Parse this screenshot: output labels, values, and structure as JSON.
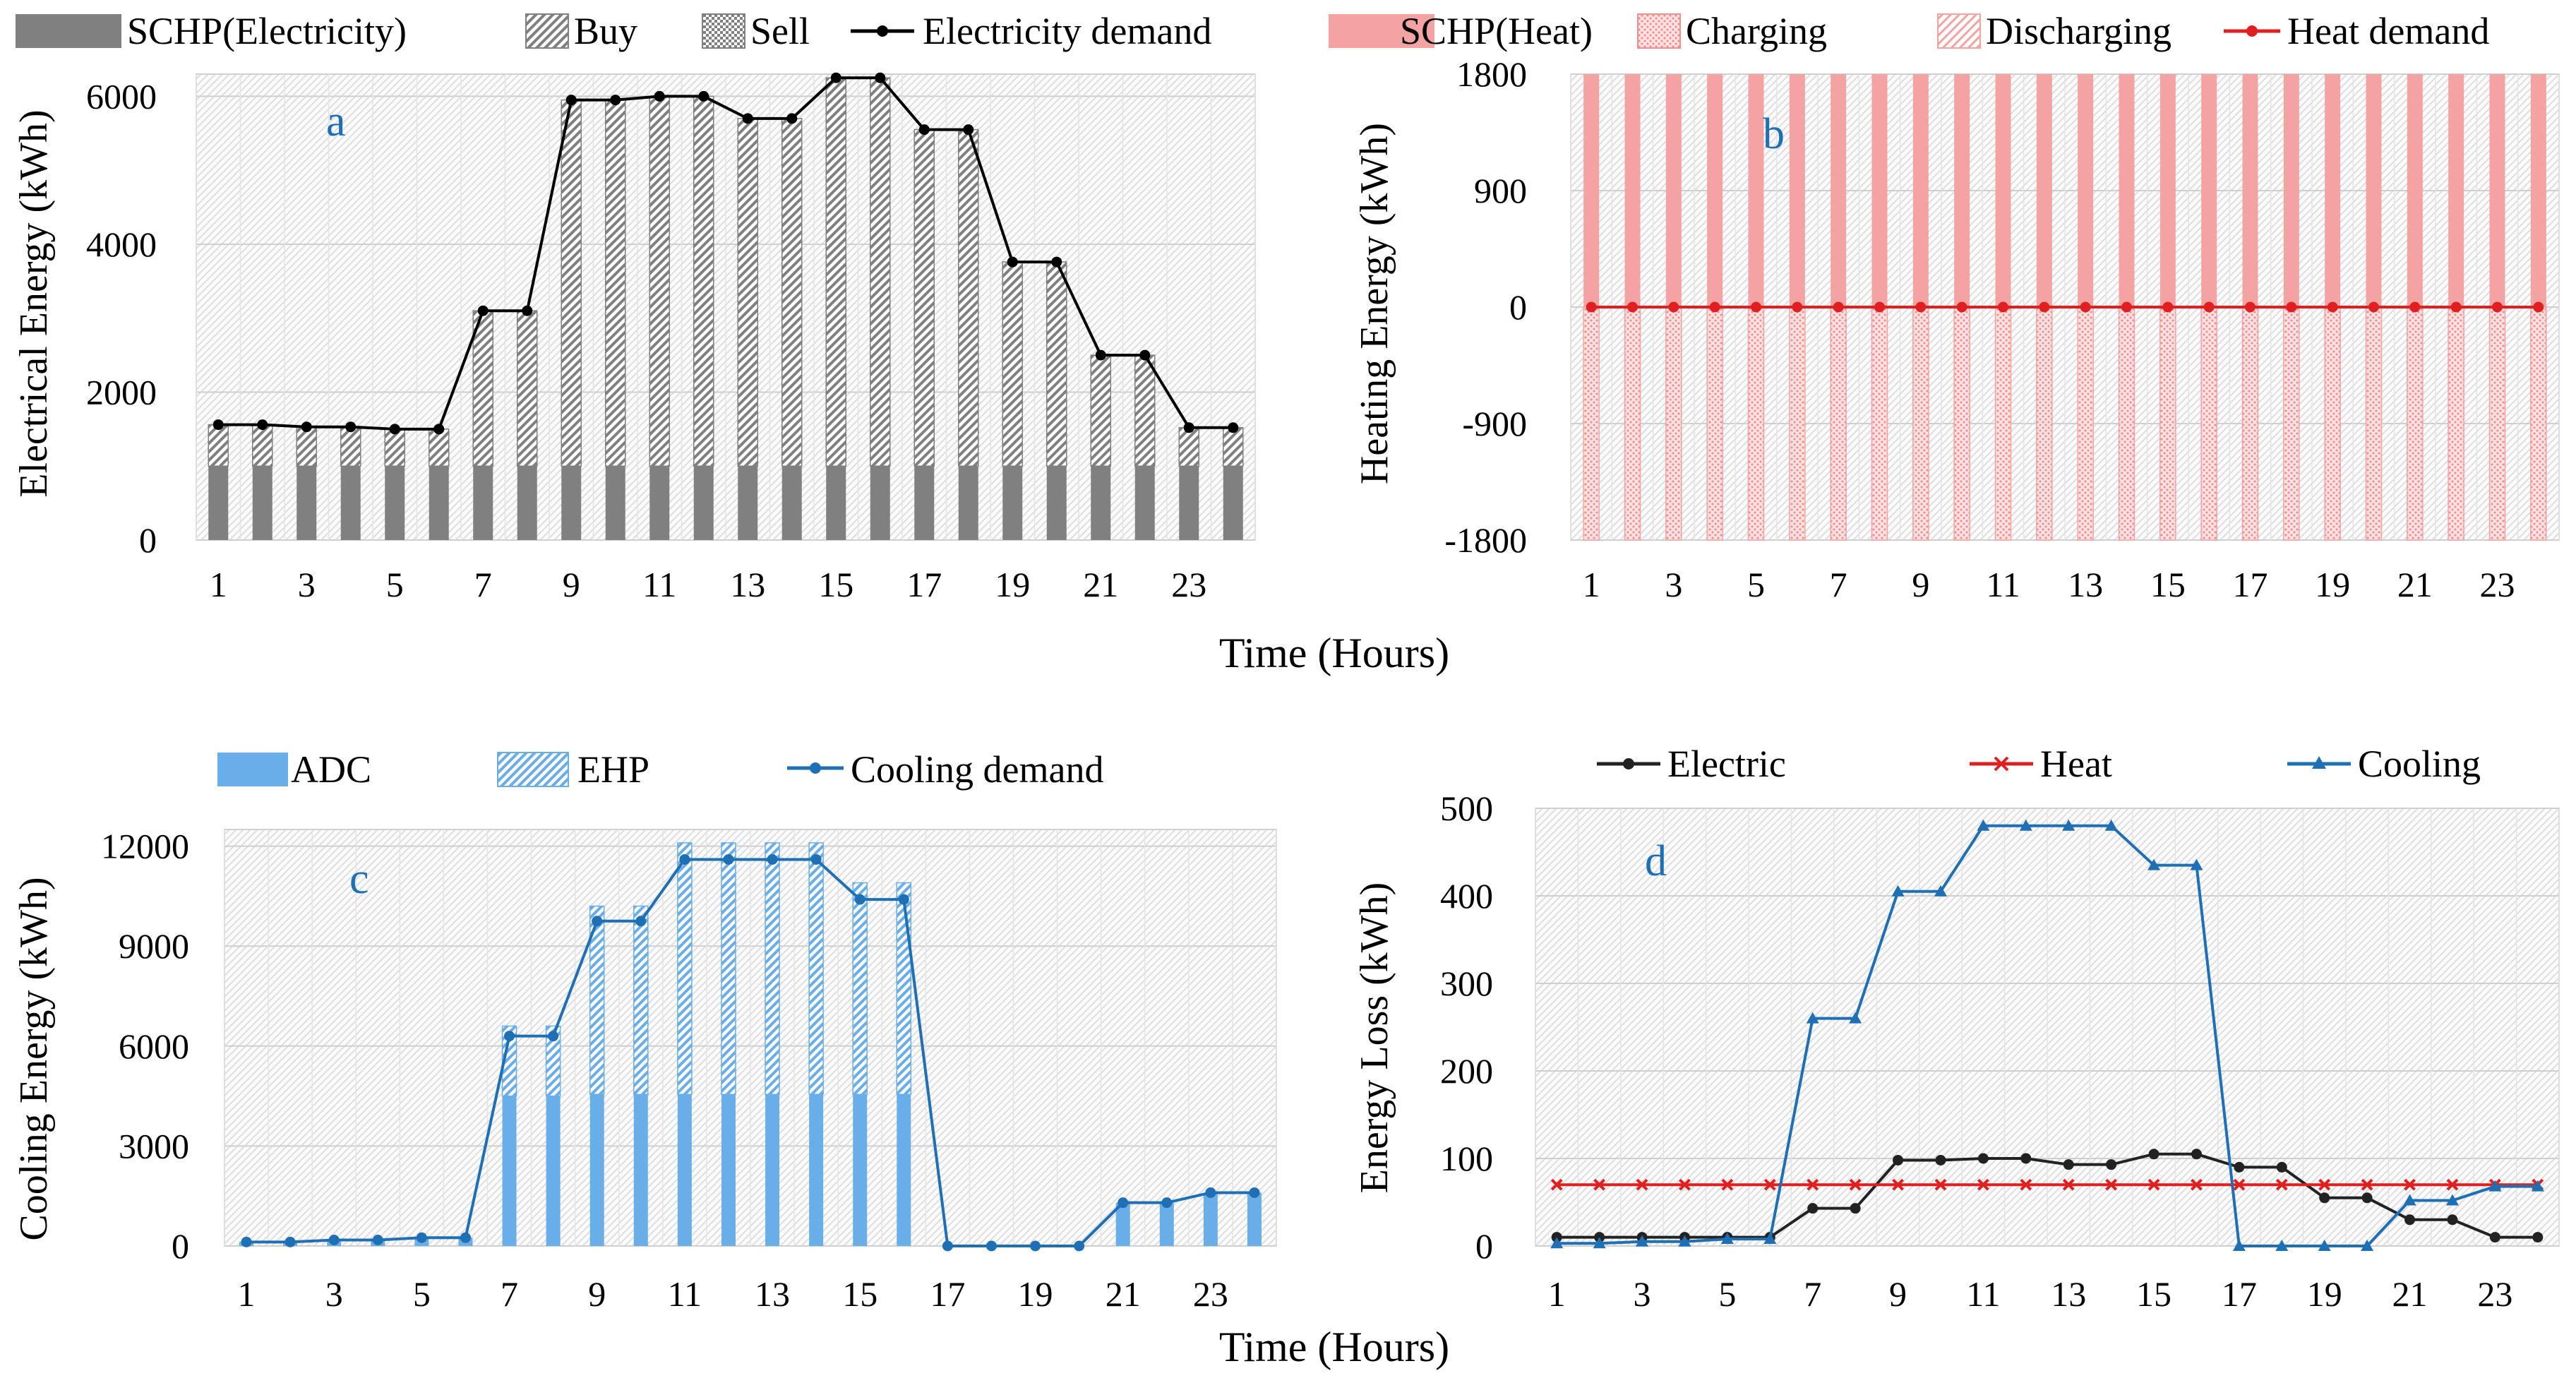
{
  "figure": {
    "xlabel_top": "Time (Hours)",
    "xlabel_bottom": "Time (Hours)"
  },
  "chart_data": [
    {
      "id": "a",
      "type": "bar",
      "panel_label": "a",
      "ylabel": "Electrical Energy (kWh)",
      "ylim": [
        0,
        6300
      ],
      "yticks": [
        "0",
        "2000",
        "4000",
        "6000"
      ],
      "ytick_values": [
        0,
        2000,
        4000,
        6000
      ],
      "xticks": [
        "1",
        "3",
        "5",
        "7",
        "9",
        "11",
        "13",
        "15",
        "17",
        "19",
        "21",
        "23"
      ],
      "x": [
        1,
        2,
        3,
        4,
        5,
        6,
        7,
        8,
        9,
        10,
        11,
        12,
        13,
        14,
        15,
        16,
        17,
        18,
        19,
        20,
        21,
        22,
        23,
        24
      ],
      "legend": [
        "SCHP(Electricity)",
        "Buy",
        "Sell",
        "Electricity demand"
      ],
      "series": [
        {
          "name": "SCHP(Electricity)",
          "kind": "bar",
          "color": "#808080",
          "values": [
            1000,
            1000,
            1000,
            1000,
            1000,
            1000,
            1000,
            1000,
            1000,
            1000,
            1000,
            1000,
            1000,
            1000,
            1000,
            1000,
            1000,
            1000,
            1000,
            1000,
            1000,
            1000,
            1000,
            1000
          ]
        },
        {
          "name": "Buy",
          "kind": "bar",
          "color": "#808080",
          "values": [
            560,
            560,
            530,
            530,
            500,
            500,
            2100,
            2100,
            4950,
            4950,
            5000,
            5000,
            4700,
            4700,
            5250,
            5250,
            4550,
            4550,
            2760,
            2760,
            1500,
            1500,
            520,
            520
          ]
        },
        {
          "name": "Sell",
          "kind": "bar",
          "color": "#808080",
          "values": [
            0,
            0,
            0,
            0,
            0,
            0,
            0,
            0,
            0,
            0,
            0,
            0,
            0,
            0,
            0,
            0,
            0,
            0,
            0,
            0,
            0,
            0,
            0,
            0
          ]
        },
        {
          "name": "Electricity demand",
          "kind": "line",
          "color": "#000000",
          "values": [
            1560,
            1560,
            1530,
            1530,
            1500,
            1500,
            3100,
            3100,
            5950,
            5950,
            6000,
            6000,
            5700,
            5700,
            6250,
            6250,
            5550,
            5550,
            3760,
            3760,
            2500,
            2500,
            1520,
            1520
          ]
        }
      ]
    },
    {
      "id": "b",
      "type": "bar",
      "panel_label": "b",
      "ylabel": "Heating Energy (kWh)",
      "ylim": [
        -1800,
        1800
      ],
      "yticks": [
        "-1800",
        "-900",
        "0",
        "900",
        "1800"
      ],
      "ytick_values": [
        -1800,
        -900,
        0,
        900,
        1800
      ],
      "xticks": [
        "1",
        "3",
        "5",
        "7",
        "9",
        "11",
        "13",
        "15",
        "17",
        "19",
        "21",
        "23"
      ],
      "x": [
        1,
        2,
        3,
        4,
        5,
        6,
        7,
        8,
        9,
        10,
        11,
        12,
        13,
        14,
        15,
        16,
        17,
        18,
        19,
        20,
        21,
        22,
        23,
        24
      ],
      "legend": [
        "SCHP(Heat)",
        "Charging",
        "Discharging",
        "Heat demand"
      ],
      "series": [
        {
          "name": "SCHP(Heat)",
          "kind": "bar",
          "color": "#f4a3a3",
          "values": [
            1800,
            1800,
            1800,
            1800,
            1800,
            1800,
            1800,
            1800,
            1800,
            1800,
            1800,
            1800,
            1800,
            1800,
            1800,
            1800,
            1800,
            1800,
            1800,
            1800,
            1800,
            1800,
            1800,
            1800
          ]
        },
        {
          "name": "Charging",
          "kind": "bar",
          "color": "#f4a3a3",
          "values": [
            -1800,
            -1800,
            -1800,
            -1800,
            -1800,
            -1800,
            -1800,
            -1800,
            -1800,
            -1800,
            -1800,
            -1800,
            -1800,
            -1800,
            -1800,
            -1800,
            -1800,
            -1800,
            -1800,
            -1800,
            -1800,
            -1800,
            -1800,
            -1800
          ]
        },
        {
          "name": "Discharging",
          "kind": "bar",
          "color": "#f4a3a3",
          "values": [
            0,
            0,
            0,
            0,
            0,
            0,
            0,
            0,
            0,
            0,
            0,
            0,
            0,
            0,
            0,
            0,
            0,
            0,
            0,
            0,
            0,
            0,
            0,
            0
          ]
        },
        {
          "name": "Heat demand",
          "kind": "line",
          "color": "#e02020",
          "values": [
            0,
            0,
            0,
            0,
            0,
            0,
            0,
            0,
            0,
            0,
            0,
            0,
            0,
            0,
            0,
            0,
            0,
            0,
            0,
            0,
            0,
            0,
            0,
            0
          ]
        }
      ]
    },
    {
      "id": "c",
      "type": "bar",
      "panel_label": "c",
      "ylabel": "Cooling Energy (kWh)",
      "ylim": [
        0,
        12500
      ],
      "yticks": [
        "0",
        "3000",
        "6000",
        "9000",
        "12000"
      ],
      "ytick_values": [
        0,
        3000,
        6000,
        9000,
        12000
      ],
      "xticks": [
        "1",
        "3",
        "5",
        "7",
        "9",
        "11",
        "13",
        "15",
        "17",
        "19",
        "21",
        "23"
      ],
      "x": [
        1,
        2,
        3,
        4,
        5,
        6,
        7,
        8,
        9,
        10,
        11,
        12,
        13,
        14,
        15,
        16,
        17,
        18,
        19,
        20,
        21,
        22,
        23,
        24
      ],
      "legend": [
        "ADC",
        "EHP",
        "Cooling demand"
      ],
      "series": [
        {
          "name": "ADC",
          "kind": "bar",
          "color": "#6aaee8",
          "values": [
            120,
            120,
            180,
            180,
            250,
            250,
            4500,
            4500,
            4550,
            4550,
            4550,
            4550,
            4550,
            4550,
            4550,
            4550,
            0,
            0,
            0,
            0,
            1300,
            1300,
            1600,
            1600
          ]
        },
        {
          "name": "EHP",
          "kind": "bar",
          "color": "#6aaee8",
          "values": [
            0,
            0,
            0,
            0,
            0,
            0,
            2100,
            2100,
            5650,
            5650,
            7550,
            7550,
            7550,
            7550,
            6350,
            6350,
            0,
            0,
            0,
            0,
            0,
            0,
            0,
            0
          ]
        },
        {
          "name": "Cooling demand",
          "kind": "line",
          "color": "#1f6fb5",
          "values": [
            120,
            120,
            180,
            180,
            250,
            250,
            6300,
            6300,
            9750,
            9750,
            11600,
            11600,
            11600,
            11600,
            10400,
            10400,
            0,
            0,
            0,
            0,
            1300,
            1300,
            1600,
            1600
          ]
        }
      ]
    },
    {
      "id": "d",
      "type": "line",
      "panel_label": "d",
      "ylabel": "Energy Loss (kWh)",
      "ylim": [
        0,
        500
      ],
      "yticks": [
        "0",
        "100",
        "200",
        "300",
        "400",
        "500"
      ],
      "ytick_values": [
        0,
        100,
        200,
        300,
        400,
        500
      ],
      "xticks": [
        "1",
        "3",
        "5",
        "7",
        "9",
        "11",
        "13",
        "15",
        "17",
        "19",
        "21",
        "23"
      ],
      "x": [
        1,
        2,
        3,
        4,
        5,
        6,
        7,
        8,
        9,
        10,
        11,
        12,
        13,
        14,
        15,
        16,
        17,
        18,
        19,
        20,
        21,
        22,
        23,
        24
      ],
      "legend": [
        "Electric",
        "Heat",
        "Cooling"
      ],
      "series": [
        {
          "name": "Electric",
          "kind": "line",
          "marker": "circle",
          "color": "#222222",
          "values": [
            10,
            10,
            10,
            10,
            10,
            10,
            43,
            43,
            98,
            98,
            100,
            100,
            93,
            93,
            105,
            105,
            90,
            90,
            55,
            55,
            30,
            30,
            10,
            10
          ]
        },
        {
          "name": "Heat",
          "kind": "line",
          "marker": "x",
          "color": "#e02020",
          "values": [
            70,
            70,
            70,
            70,
            70,
            70,
            70,
            70,
            70,
            70,
            70,
            70,
            70,
            70,
            70,
            70,
            70,
            70,
            70,
            70,
            70,
            70,
            70,
            70
          ]
        },
        {
          "name": "Cooling",
          "kind": "line",
          "marker": "triangle",
          "color": "#1f6fb5",
          "values": [
            3,
            3,
            5,
            5,
            8,
            8,
            260,
            260,
            405,
            405,
            480,
            480,
            480,
            480,
            435,
            435,
            0,
            0,
            0,
            0,
            52,
            52,
            68,
            68
          ]
        }
      ]
    }
  ]
}
